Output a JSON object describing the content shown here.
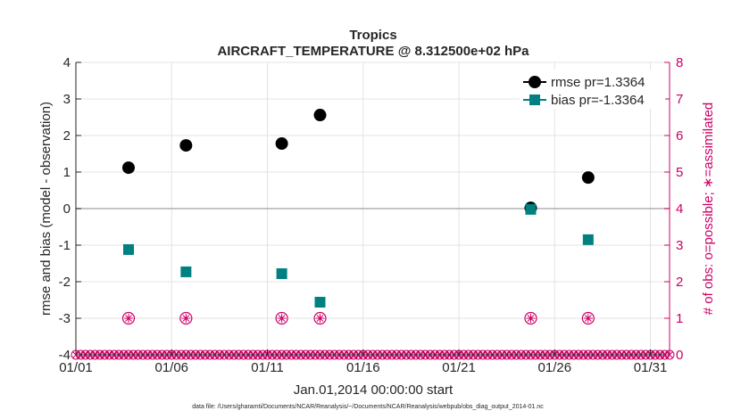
{
  "chart_data": {
    "type": "scatter",
    "title": "Tropics",
    "subtitle": "AIRCRAFT_TEMPERATURE @ 8.312500e+02 hPa",
    "xlabel": "Jan.01,2014 00:00:00 start",
    "ylabel": "rmse and bias (model - observation)",
    "ylabel_right": "# of obs: o=possible; ∗=assimilated",
    "footnote": "data file: /Users/gharamti/Documents/NCAR/Reanalysis/~/Documents/NCAR/Reanalysis/webpub/obs_diag_output_2014-01.nc",
    "xlim": [
      1,
      32
    ],
    "ylim": [
      -4,
      4
    ],
    "ylim_right": [
      0,
      8
    ],
    "xticks": [
      1,
      6,
      11,
      16,
      21,
      26,
      31
    ],
    "xtick_labels": [
      "01/01",
      "01/06",
      "01/11",
      "01/16",
      "01/21",
      "01/26",
      "01/31"
    ],
    "yticks": [
      -4,
      -3,
      -2,
      -1,
      0,
      1,
      2,
      3,
      4
    ],
    "yticks_right": [
      0,
      1,
      2,
      3,
      4,
      5,
      6,
      7,
      8
    ],
    "grid": true,
    "legend_position": "top-right",
    "series": [
      {
        "name": "rmse pr=1.3364",
        "marker": "circle",
        "color": "#000000",
        "x": [
          3.75,
          6.75,
          11.75,
          13.75,
          24.75,
          27.75
        ],
        "y": [
          1.12,
          1.73,
          1.78,
          2.56,
          0.02,
          0.85
        ]
      },
      {
        "name": "bias pr=-1.3364",
        "marker": "square",
        "color": "#008080",
        "x": [
          3.75,
          6.75,
          11.75,
          13.75,
          24.75,
          27.75
        ],
        "y": [
          -1.12,
          -1.73,
          -1.78,
          -2.56,
          -0.02,
          -0.85
        ]
      }
    ],
    "obs_assimilated": {
      "color": "#cc0066",
      "x": [
        3.75,
        6.75,
        11.75,
        13.75,
        24.75,
        27.75
      ],
      "count": [
        1,
        1,
        1,
        1,
        1,
        1
      ]
    },
    "obs_possible_zero_markers": {
      "color": "#cc0066",
      "x_start": 1.0,
      "x_end": 32.0,
      "step": 0.25,
      "count": 0
    }
  }
}
